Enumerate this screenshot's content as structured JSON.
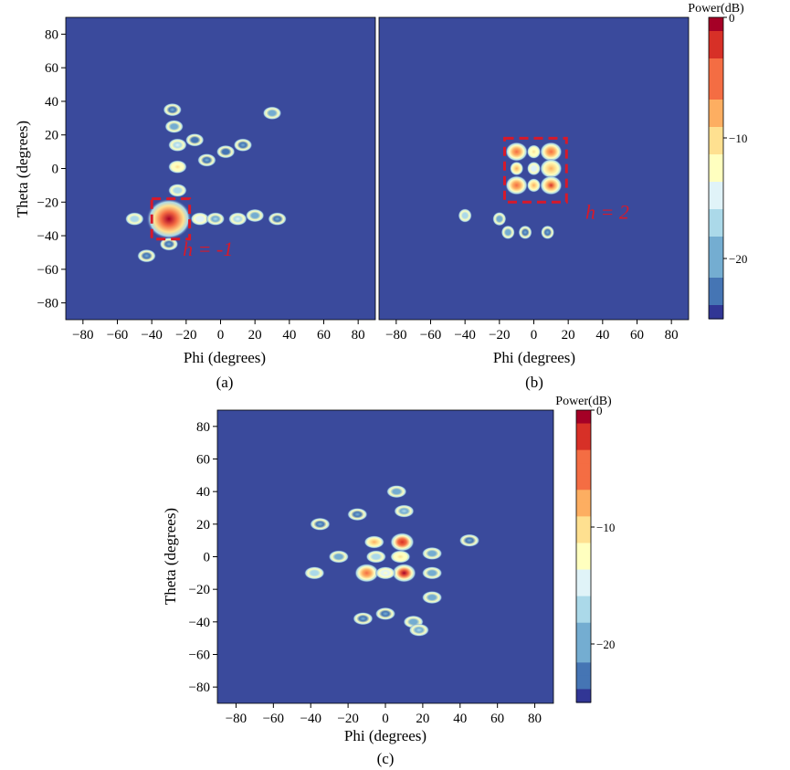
{
  "colors": {
    "background": "#3a4a9c",
    "annotation": "#d7192a",
    "colormap": [
      "#313695",
      "#4575b4",
      "#74add1",
      "#abd9e9",
      "#e0f3f8",
      "#ffffbf",
      "#fee090",
      "#fdae61",
      "#f46d43",
      "#d73027",
      "#a50026"
    ]
  },
  "chart_data": [
    {
      "type": "heatmap",
      "panel": "(a)",
      "xlabel": "Phi (degrees)",
      "ylabel": "Theta (degrees)",
      "xlim": [
        -90,
        90
      ],
      "ylim": [
        -90,
        90
      ],
      "xticks": [
        -80,
        -60,
        -40,
        -20,
        0,
        20,
        40,
        60,
        80
      ],
      "yticks": [
        -80,
        -60,
        -40,
        -20,
        0,
        20,
        40,
        60,
        80
      ],
      "xtick_labels": [
        "−80",
        "−60",
        "−40",
        "−20",
        "0",
        "20",
        "40",
        "60",
        "80"
      ],
      "ytick_labels": [
        "−80",
        "−60",
        "−40",
        "−20",
        "0",
        "20",
        "40",
        "60",
        "80"
      ],
      "zlim_db": [
        -25,
        0
      ],
      "annotation": {
        "text": "h = -1",
        "box_phi": [
          -40,
          -18
        ],
        "box_theta": [
          -42,
          -18
        ]
      },
      "lobes": [
        {
          "phi": -30,
          "theta": -30,
          "power_db": 0
        },
        {
          "phi": -25,
          "theta": 1,
          "power_db": -11
        },
        {
          "phi": -25,
          "theta": 14,
          "power_db": -16
        },
        {
          "phi": -25,
          "theta": -13,
          "power_db": -17
        },
        {
          "phi": -27,
          "theta": 25,
          "power_db": -20
        },
        {
          "phi": -28,
          "theta": 35,
          "power_db": -21
        },
        {
          "phi": -50,
          "theta": -30,
          "power_db": -17
        },
        {
          "phi": -12,
          "theta": -30,
          "power_db": -14
        },
        {
          "phi": -3,
          "theta": -30,
          "power_db": -18
        },
        {
          "phi": 10,
          "theta": -30,
          "power_db": -16
        },
        {
          "phi": 20,
          "theta": -28,
          "power_db": -20
        },
        {
          "phi": 33,
          "theta": -30,
          "power_db": -21
        },
        {
          "phi": -30,
          "theta": -45,
          "power_db": -21
        },
        {
          "phi": -43,
          "theta": -52,
          "power_db": -21
        },
        {
          "phi": 30,
          "theta": 33,
          "power_db": -20
        },
        {
          "phi": -8,
          "theta": 5,
          "power_db": -21
        },
        {
          "phi": 3,
          "theta": 10,
          "power_db": -22
        },
        {
          "phi": 13,
          "theta": 14,
          "power_db": -21
        },
        {
          "phi": -15,
          "theta": 17,
          "power_db": -22
        }
      ]
    },
    {
      "type": "heatmap",
      "panel": "(b)",
      "xlabel": "Phi (degrees)",
      "ylabel": "",
      "xlim": [
        -90,
        90
      ],
      "ylim": [
        -90,
        90
      ],
      "xticks": [
        -80,
        -60,
        -40,
        -20,
        0,
        20,
        40,
        60,
        80
      ],
      "xtick_labels": [
        "−80",
        "−60",
        "−40",
        "−20",
        "0",
        "20",
        "40",
        "60",
        "80"
      ],
      "zlim_db": [
        -25,
        0
      ],
      "colorbar": {
        "title": "Power(dB)",
        "ticks": [
          0,
          -10,
          -20
        ],
        "tick_labels": [
          "0",
          "−10",
          "−20"
        ]
      },
      "annotation": {
        "text": "h = 2",
        "box_phi": [
          -17,
          19
        ],
        "box_theta": [
          -20,
          18
        ]
      },
      "lobes": [
        {
          "phi": -10,
          "theta": 10,
          "power_db": -5
        },
        {
          "phi": 0,
          "theta": 10,
          "power_db": -9
        },
        {
          "phi": 10,
          "theta": 10,
          "power_db": -4
        },
        {
          "phi": -10,
          "theta": 0,
          "power_db": -8
        },
        {
          "phi": 0,
          "theta": 0,
          "power_db": -14
        },
        {
          "phi": 10,
          "theta": 0,
          "power_db": -7
        },
        {
          "phi": -10,
          "theta": -10,
          "power_db": -4
        },
        {
          "phi": 0,
          "theta": -10,
          "power_db": -8
        },
        {
          "phi": 10,
          "theta": -10,
          "power_db": -3
        },
        {
          "phi": -40,
          "theta": -28,
          "power_db": -17
        },
        {
          "phi": -15,
          "theta": -38,
          "power_db": -19
        },
        {
          "phi": -5,
          "theta": -38,
          "power_db": -21
        },
        {
          "phi": 8,
          "theta": -38,
          "power_db": -21
        },
        {
          "phi": -20,
          "theta": -30,
          "power_db": -20
        }
      ]
    },
    {
      "type": "heatmap",
      "panel": "(c)",
      "xlabel": "Phi (degrees)",
      "ylabel": "Theta (degrees)",
      "xlim": [
        -90,
        90
      ],
      "ylim": [
        -90,
        90
      ],
      "xticks": [
        -80,
        -60,
        -40,
        -20,
        0,
        20,
        40,
        60,
        80
      ],
      "yticks": [
        -80,
        -60,
        -40,
        -20,
        0,
        20,
        40,
        60,
        80
      ],
      "xtick_labels": [
        "−80",
        "−60",
        "−40",
        "−20",
        "0",
        "20",
        "40",
        "60",
        "80"
      ],
      "ytick_labels": [
        "−80",
        "−60",
        "−40",
        "−20",
        "0",
        "20",
        "40",
        "60",
        "80"
      ],
      "zlim_db": [
        -25,
        0
      ],
      "colorbar": {
        "title": "Power(dB)",
        "ticks": [
          0,
          -10,
          -20
        ],
        "tick_labels": [
          "0",
          "−10",
          "−20"
        ]
      },
      "lobes": [
        {
          "phi": -6,
          "theta": 9,
          "power_db": -8
        },
        {
          "phi": 9,
          "theta": 9,
          "power_db": -2
        },
        {
          "phi": -10,
          "theta": -10,
          "power_db": -5
        },
        {
          "phi": 10,
          "theta": -10,
          "power_db": -1
        },
        {
          "phi": 0,
          "theta": -10,
          "power_db": -13
        },
        {
          "phi": 8,
          "theta": 0,
          "power_db": -9
        },
        {
          "phi": -5,
          "theta": 0,
          "power_db": -17
        },
        {
          "phi": -25,
          "theta": 0,
          "power_db": -19
        },
        {
          "phi": 25,
          "theta": 2,
          "power_db": -19
        },
        {
          "phi": -38,
          "theta": -10,
          "power_db": -17
        },
        {
          "phi": 25,
          "theta": -10,
          "power_db": -19
        },
        {
          "phi": 25,
          "theta": -25,
          "power_db": -19
        },
        {
          "phi": 10,
          "theta": 28,
          "power_db": -18
        },
        {
          "phi": 6,
          "theta": 40,
          "power_db": -20
        },
        {
          "phi": 15,
          "theta": -40,
          "power_db": -19
        },
        {
          "phi": 18,
          "theta": -45,
          "power_db": -18
        },
        {
          "phi": 0,
          "theta": -35,
          "power_db": -21
        },
        {
          "phi": -12,
          "theta": -38,
          "power_db": -21
        },
        {
          "phi": -35,
          "theta": 20,
          "power_db": -21
        },
        {
          "phi": 45,
          "theta": 10,
          "power_db": -21
        },
        {
          "phi": -15,
          "theta": 26,
          "power_db": -21
        }
      ]
    }
  ]
}
